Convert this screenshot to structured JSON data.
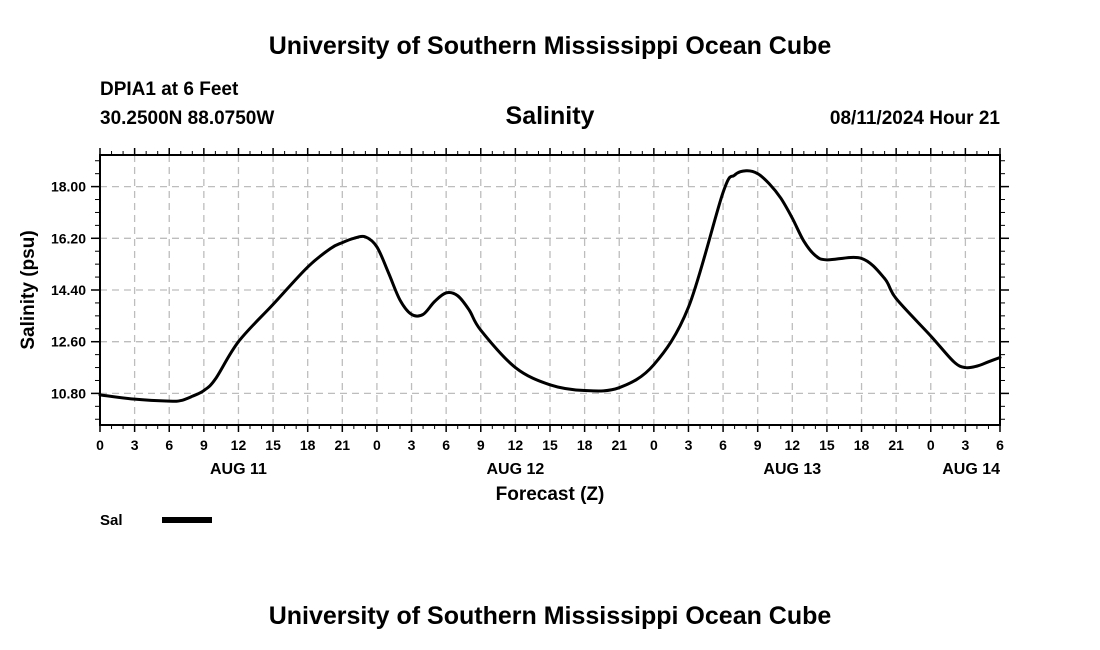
{
  "header": {
    "top_title": "University of Southern Mississippi Ocean Cube",
    "station": "DPIA1 at 6 Feet",
    "coords": "30.2500N  88.0750W",
    "datetime": "08/11/2024 Hour 21",
    "bottom_title": "University of Southern Mississippi Ocean Cube"
  },
  "chart_data": {
    "type": "line",
    "title": "Salinity",
    "xlabel": "Forecast (Z)",
    "ylabel": "Salinity (psu)",
    "x_tick_labels": [
      "0",
      "3",
      "6",
      "9",
      "12",
      "15",
      "18",
      "21",
      "0",
      "3",
      "6",
      "9",
      "12",
      "15",
      "18",
      "21",
      "0",
      "3",
      "6",
      "9",
      "12",
      "15",
      "18",
      "21",
      "0",
      "3",
      "6"
    ],
    "date_labels": [
      {
        "hour": 12,
        "label": "AUG 11"
      },
      {
        "hour": 36,
        "label": "AUG 12"
      },
      {
        "hour": 60,
        "label": "AUG 13"
      },
      {
        "hour": 84,
        "label": "AUG 14"
      }
    ],
    "x_unit": "forecast hour (Z) from AUG 11 00Z",
    "xlim": [
      0,
      78
    ],
    "ylim": [
      9.7,
      19.1
    ],
    "y_ticks": [
      "10.80",
      "12.60",
      "14.40",
      "16.20",
      "18.00"
    ],
    "grid": true,
    "legend_placement": "below-left",
    "series": [
      {
        "name": "Sal",
        "color": "#000000",
        "x": [
          0,
          3,
          6,
          7,
          8,
          9,
          10,
          12,
          15,
          18,
          20,
          21,
          22,
          23,
          24,
          25,
          26,
          27,
          28,
          29,
          30,
          31,
          32,
          33,
          36,
          39,
          42,
          45,
          48,
          51,
          54,
          55,
          56,
          57,
          58,
          59,
          60,
          61,
          62,
          63,
          66,
          68,
          69,
          72,
          74,
          75,
          76,
          77,
          78
        ],
        "y": [
          10.75,
          10.6,
          10.53,
          10.55,
          10.7,
          10.9,
          11.3,
          12.6,
          13.9,
          15.2,
          15.85,
          16.05,
          16.2,
          16.25,
          15.9,
          15.0,
          14.05,
          13.55,
          13.55,
          14.0,
          14.3,
          14.2,
          13.7,
          13.0,
          11.7,
          11.1,
          10.9,
          11.0,
          11.8,
          13.8,
          17.8,
          18.4,
          18.55,
          18.45,
          18.1,
          17.6,
          16.9,
          16.1,
          15.6,
          15.45,
          15.5,
          14.8,
          14.1,
          12.8,
          11.9,
          11.7,
          11.75,
          11.9,
          12.05
        ]
      }
    ]
  }
}
